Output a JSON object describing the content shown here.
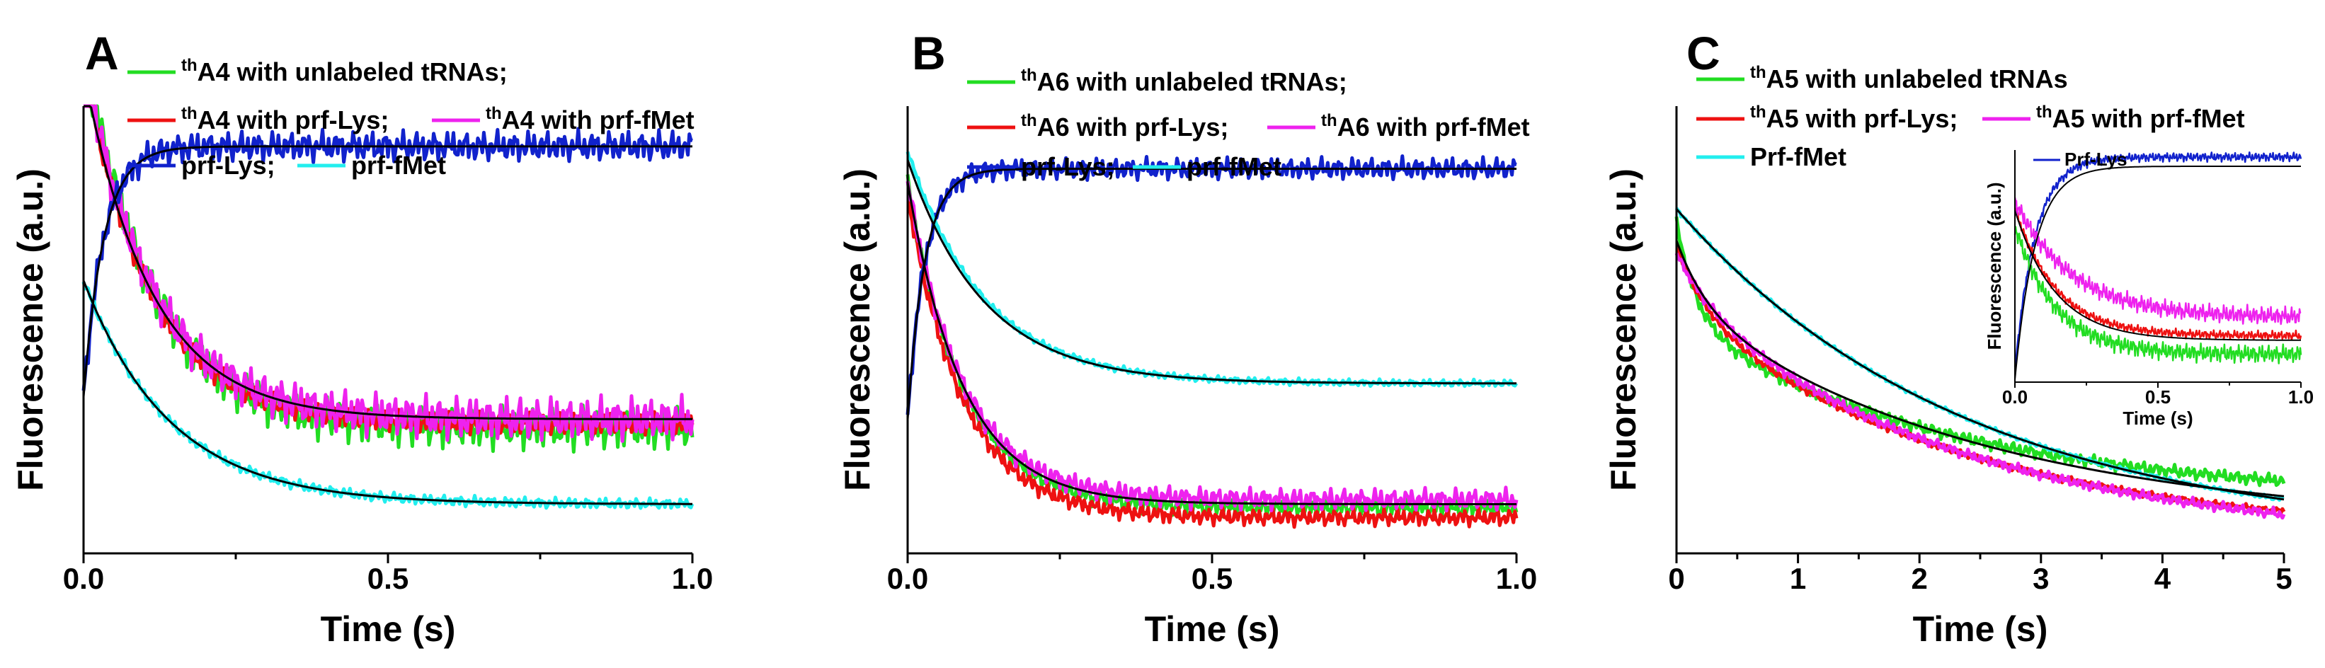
{
  "colors": {
    "green": "#22dd22",
    "red": "#ee1111",
    "magenta": "#ee22ee",
    "blue": "#1122cc",
    "cyan": "#22eeee",
    "fit": "#000000",
    "axis": "#000000"
  },
  "chart_data": [
    {
      "panel": "A",
      "type": "line",
      "xlabel": "Time (s)",
      "ylabel": "Fluorescence (a.u.)",
      "xlim": [
        0,
        1
      ],
      "ylim": [
        0,
        1
      ],
      "xticks": [
        "0.0",
        "0.5",
        "1.0"
      ],
      "xtick_values": [
        0,
        0.5,
        1.0
      ],
      "legend": [
        {
          "sup": "th",
          "text": "A4 with unlabeled tRNAs;",
          "color": "green"
        },
        {
          "sup": "th",
          "text": "A4 with prf-Lys;",
          "color": "red"
        },
        {
          "sup": "th",
          "text": "A4 with prf-fMet",
          "color": "magenta"
        },
        {
          "sup": "",
          "text": "prf-Lys;",
          "color": "blue"
        },
        {
          "sup": "",
          "text": "prf-fMet",
          "color": "cyan"
        }
      ],
      "series": [
        {
          "name": "thA4 with unlabeled tRNAs",
          "color": "green",
          "kind": "decay",
          "A": 0.86,
          "k": 9,
          "C": 0.28,
          "noise": 0.05
        },
        {
          "name": "thA4 with prf-Lys",
          "color": "red",
          "kind": "decay",
          "A": 0.8,
          "k": 9,
          "C": 0.29,
          "noise": 0.025
        },
        {
          "name": "thA4 with prf-fMet",
          "color": "magenta",
          "kind": "decay",
          "A": 0.81,
          "k": 9,
          "C": 0.3,
          "noise": 0.05
        },
        {
          "name": "prf-Lys",
          "color": "blue",
          "kind": "rise",
          "A": 0.56,
          "k": 30,
          "C": 0.91,
          "noise": 0.035
        },
        {
          "name": "prf-fMet",
          "color": "cyan",
          "kind": "decay",
          "A": 0.5,
          "k": 7,
          "C": 0.11,
          "noise": 0.012
        }
      ],
      "fits": [
        {
          "kind": "decay",
          "A": 0.78,
          "k": 9,
          "C": 0.3
        },
        {
          "kind": "rise",
          "A": 0.56,
          "k": 30,
          "C": 0.91
        },
        {
          "kind": "decay",
          "A": 0.5,
          "k": 7,
          "C": 0.11
        }
      ]
    },
    {
      "panel": "B",
      "type": "line",
      "xlabel": "Time (s)",
      "ylabel": "Fluorescence (a.u.)",
      "xlim": [
        0,
        1
      ],
      "ylim": [
        0,
        1
      ],
      "xticks": [
        "0.0",
        "0.5",
        "1.0"
      ],
      "xtick_values": [
        0,
        0.5,
        1.0
      ],
      "legend": [
        {
          "sup": "th",
          "text": "A6 with unlabeled tRNAs;",
          "color": "green"
        },
        {
          "sup": "th",
          "text": "A6 with prf-Lys;",
          "color": "red"
        },
        {
          "sup": "th",
          "text": "A6 with prf-fMet",
          "color": "magenta"
        },
        {
          "sup": "",
          "text": "prf-Lys;",
          "color": "blue"
        },
        {
          "sup": "",
          "text": "prf-fMet",
          "color": "cyan"
        }
      ],
      "series": [
        {
          "name": "thA6 with unlabeled tRNAs",
          "color": "green",
          "kind": "decay",
          "A": 0.73,
          "k": 11,
          "C": 0.1,
          "noise": 0.02
        },
        {
          "name": "thA6 with prf-Lys",
          "color": "red",
          "kind": "decay",
          "A": 0.72,
          "k": 11,
          "C": 0.08,
          "noise": 0.02
        },
        {
          "name": "thA6 with prf-fMet",
          "color": "magenta",
          "kind": "decay",
          "A": 0.71,
          "k": 11,
          "C": 0.12,
          "noise": 0.025
        },
        {
          "name": "prf-Lys",
          "color": "blue",
          "kind": "rise",
          "A": 0.56,
          "k": 35,
          "C": 0.86,
          "noise": 0.025
        },
        {
          "name": "prf-fMet",
          "color": "cyan",
          "kind": "decay",
          "A": 0.52,
          "k": 8,
          "C": 0.38,
          "noise": 0.008
        }
      ],
      "fits": [
        {
          "kind": "decay",
          "A": 0.72,
          "k": 11,
          "C": 0.11
        },
        {
          "kind": "rise",
          "A": 0.56,
          "k": 35,
          "C": 0.86
        },
        {
          "kind": "decay",
          "A": 0.5,
          "k": 8,
          "C": 0.38
        }
      ]
    },
    {
      "panel": "C",
      "type": "line",
      "xlabel": "Time (s)",
      "ylabel": "Fluorescence (a.u.)",
      "xlim": [
        0,
        5
      ],
      "ylim": [
        0,
        1
      ],
      "xticks": [
        "0",
        "1",
        "2",
        "3",
        "4",
        "5"
      ],
      "xtick_values": [
        0,
        1,
        2,
        3,
        4,
        5
      ],
      "legend": [
        {
          "sup": "th",
          "text": "A5 with unlabeled tRNAs",
          "color": "green"
        },
        {
          "sup": "th",
          "text": "A5 with prf-Lys;",
          "color": "red"
        },
        {
          "sup": "th",
          "text": "A5 with prf-fMet",
          "color": "magenta"
        },
        {
          "sup": "",
          "text": "Prf-fMet",
          "color": "cyan"
        }
      ],
      "series": [
        {
          "name": "thA5 with unlabeled tRNAs",
          "color": "green",
          "kind": "double",
          "A1": 0.22,
          "k1": 6,
          "A2": 0.4,
          "k2": 0.45,
          "C": 0.12,
          "noise": 0.015
        },
        {
          "name": "thA5 with prf-Lys",
          "color": "red",
          "kind": "double",
          "A1": 0.14,
          "k1": 4,
          "A2": 0.52,
          "k2": 0.42,
          "C": 0.03,
          "noise": 0.008
        },
        {
          "name": "thA5 with prf-fMet",
          "color": "magenta",
          "kind": "double",
          "A1": 0.1,
          "k1": 3,
          "A2": 0.55,
          "k2": 0.42,
          "C": 0.02,
          "noise": 0.012
        },
        {
          "name": "Prf-fMet",
          "color": "cyan",
          "kind": "decay",
          "A": 0.74,
          "k": 0.42,
          "C": 0.03,
          "noise": 0.005
        }
      ],
      "fits": [
        {
          "kind": "double",
          "A1": 0.14,
          "k1": 4,
          "A2": 0.5,
          "k2": 0.4,
          "C": 0.06
        },
        {
          "kind": "decay",
          "A": 0.74,
          "k": 0.42,
          "C": 0.03
        }
      ],
      "inset": {
        "xlabel": "Time (s)",
        "ylabel": "Fluorescence (a.u.)",
        "xlim": [
          0,
          1
        ],
        "ylim": [
          0,
          1
        ],
        "xticks": [
          "0.0",
          "0.5",
          "1.0"
        ],
        "xtick_values": [
          0,
          0.5,
          1.0
        ],
        "legend": [
          {
            "text": "Prf-Lys",
            "color": "blue"
          }
        ],
        "series": [
          {
            "name": "Prf-Lys",
            "color": "blue",
            "kind": "rise",
            "A": 0.92,
            "k": 14,
            "C": 0.97,
            "noise": 0.02
          },
          {
            "name": "thA5 with unlabeled tRNAs",
            "color": "green",
            "kind": "decay",
            "A": 0.55,
            "k": 7,
            "C": 0.12,
            "noise": 0.04
          },
          {
            "name": "thA5 with prf-Lys",
            "color": "red",
            "kind": "decay",
            "A": 0.55,
            "k": 7,
            "C": 0.2,
            "noise": 0.02
          },
          {
            "name": "thA5 with prf-fMet",
            "color": "magenta",
            "kind": "decay",
            "A": 0.5,
            "k": 5,
            "C": 0.28,
            "noise": 0.04
          }
        ],
        "fits": [
          {
            "kind": "rise",
            "A": 0.92,
            "k": 14,
            "C": 0.93
          },
          {
            "kind": "decay",
            "A": 0.56,
            "k": 7,
            "C": 0.18
          }
        ]
      }
    }
  ]
}
